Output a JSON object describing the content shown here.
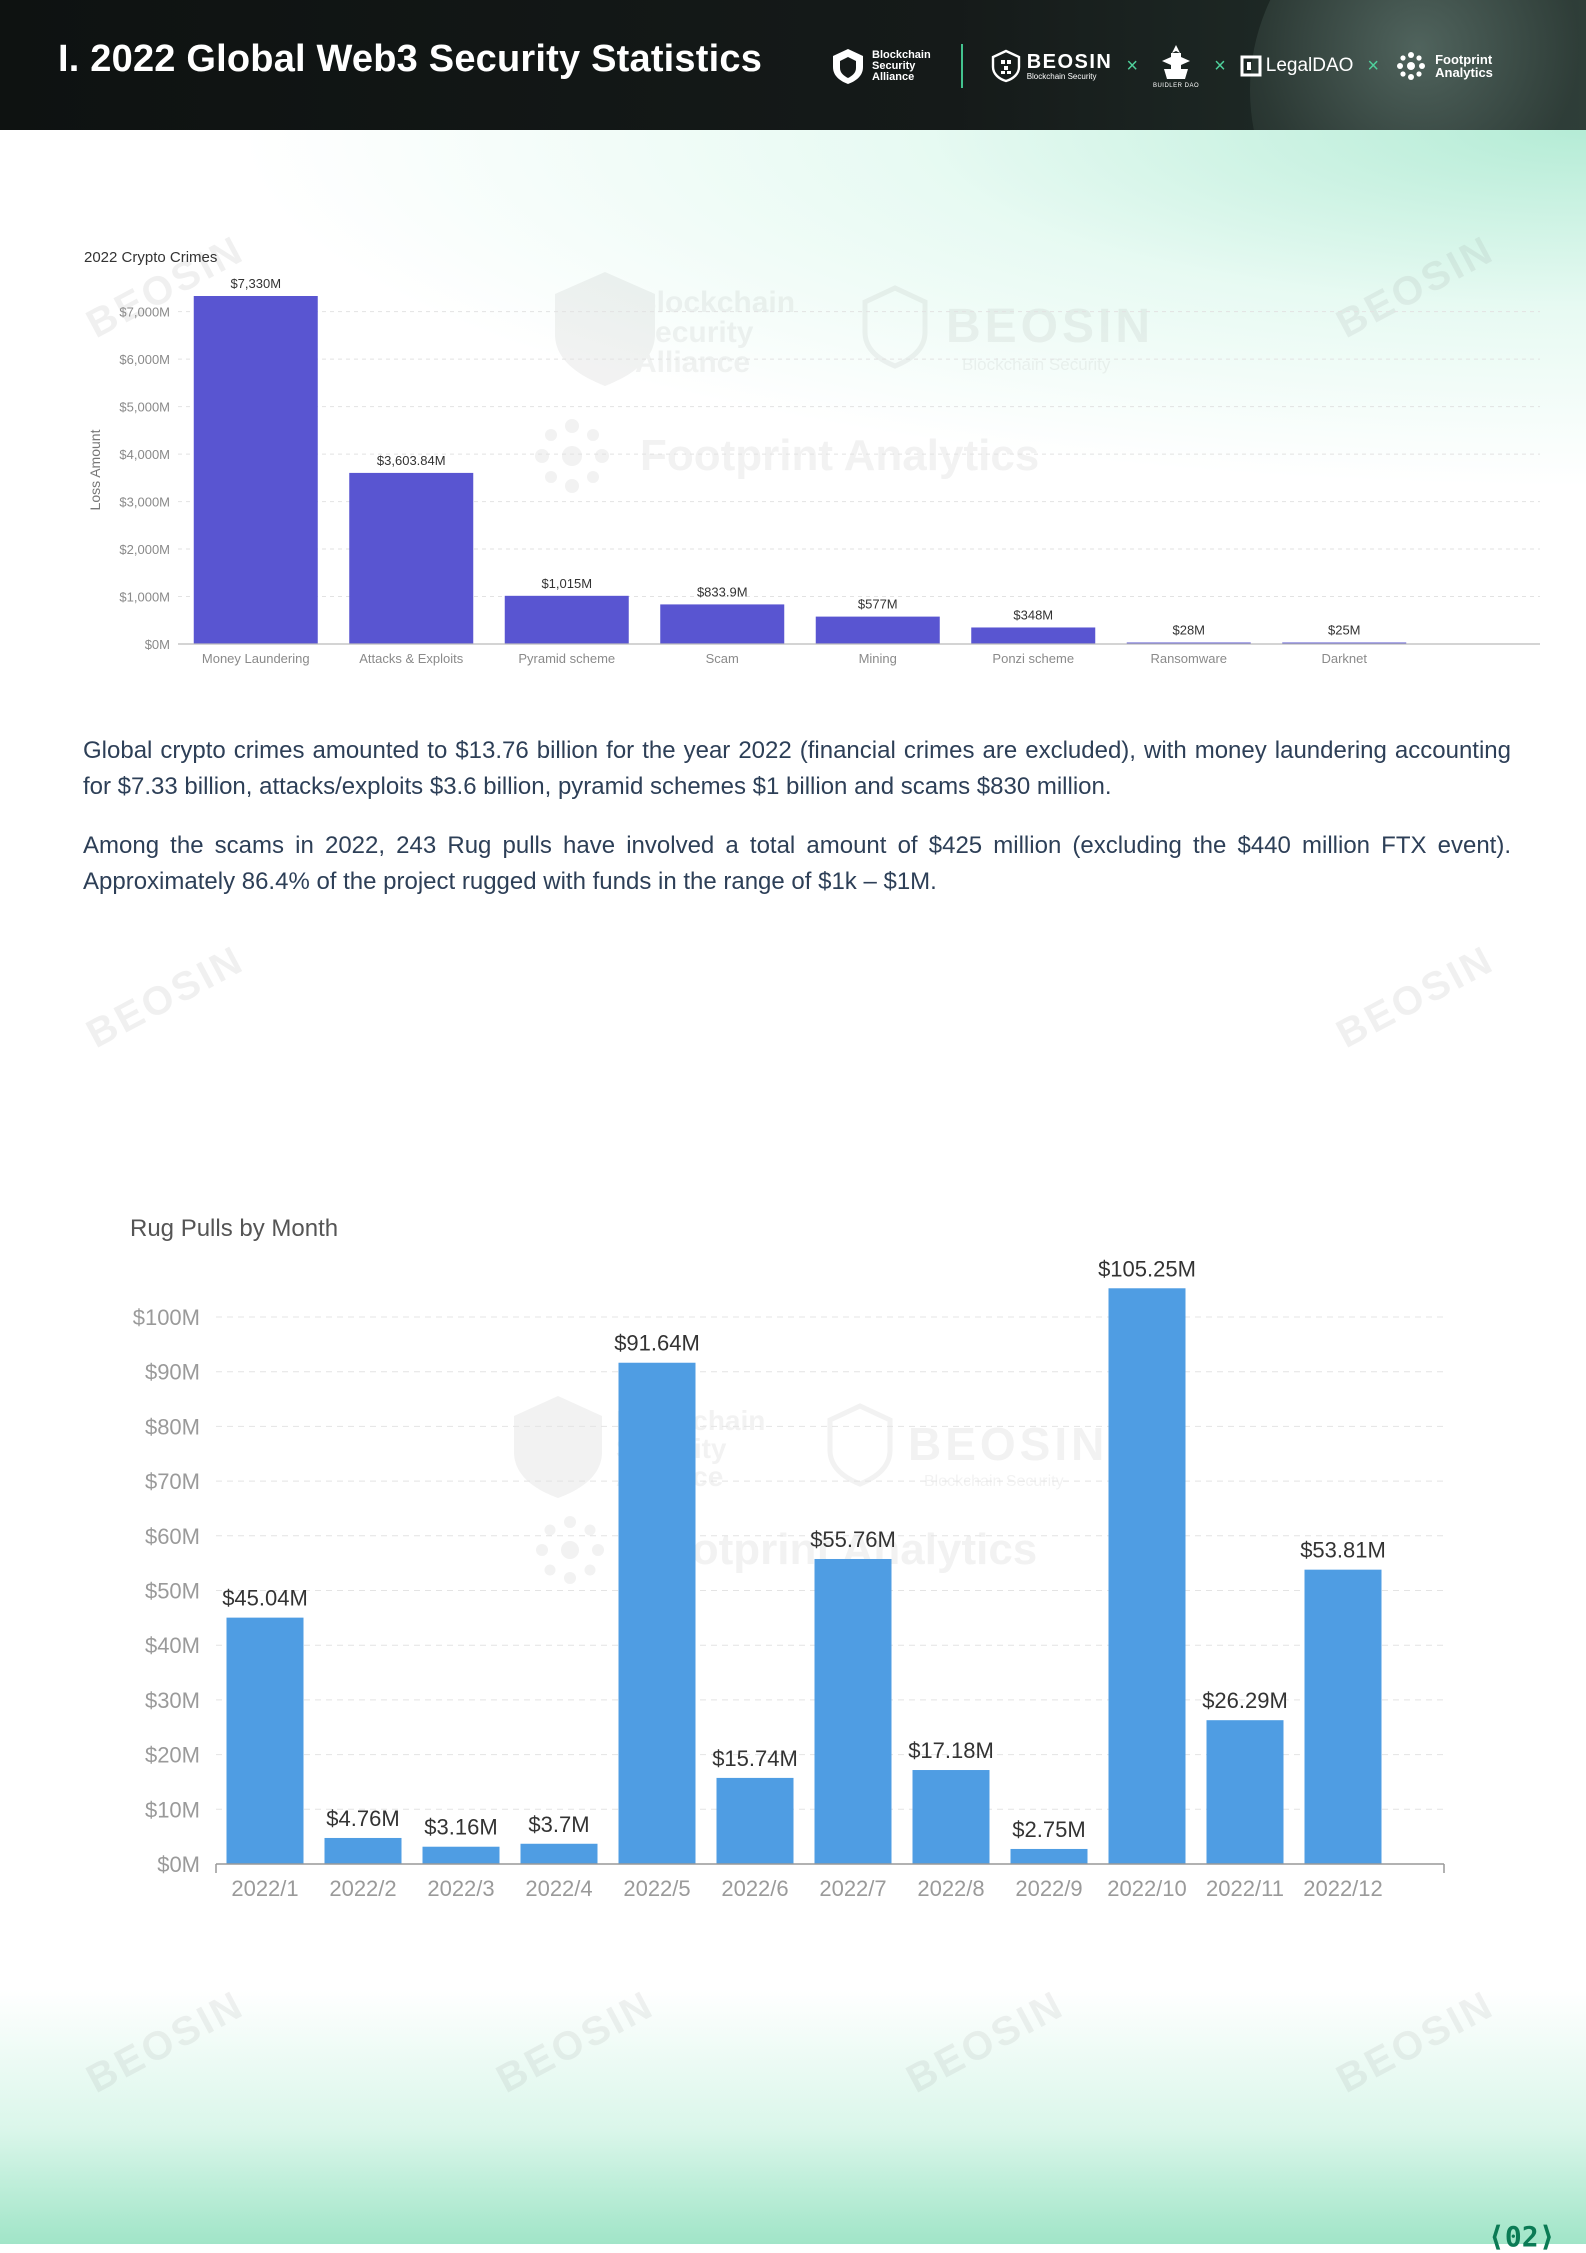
{
  "header": {
    "title": "I. 2022 Global Web3 Security Statistics",
    "logos": {
      "bsa": [
        "Blockchain",
        "Security",
        "Alliance"
      ],
      "beosin": {
        "name": "BEOSIN",
        "sub": "Blockchain Security"
      },
      "buidler": "BUIDLER DAO",
      "legaldao": "LegalDAO",
      "footprint": [
        "Footprint",
        "Analytics"
      ],
      "separator": "×"
    }
  },
  "watermarks": {
    "beosin": "BEOSIN",
    "beosin_sub": "Blockchain Security",
    "bsa": [
      "Blockchain",
      "Security",
      "Alliance"
    ],
    "footprint": "Footprint Analytics"
  },
  "colors": {
    "chart1_bar": "#5955d1",
    "chart2_bar": "#4f9de3",
    "text_body": "#2d3f57",
    "accent_green": "#43c38f"
  },
  "chart_data": [
    {
      "type": "bar",
      "title": "2022 Crypto Crimes",
      "xlabel": "",
      "ylabel": "Loss Amount",
      "categories": [
        "Money Laundering",
        "Attacks & Exploits",
        "Pyramid scheme",
        "Scam",
        "Mining",
        "Ponzi scheme",
        "Ransomware",
        "Darknet"
      ],
      "values": [
        7330,
        3603.84,
        1015,
        833.9,
        577,
        348,
        28,
        25
      ],
      "data_labels": [
        "$7,330M",
        "$3,603.84M",
        "$1,015M",
        "$833.9M",
        "$577M",
        "$348M",
        "$28M",
        "$25M"
      ],
      "yticks": [
        0,
        1000,
        2000,
        3000,
        4000,
        5000,
        6000,
        7000
      ],
      "ytick_labels": [
        "$0M",
        "$1,000M",
        "$2,000M",
        "$3,000M",
        "$4,000M",
        "$5,000M",
        "$6,000M",
        "$7,000M"
      ],
      "ylim": [
        0,
        7330
      ],
      "grid": true,
      "unit": "M USD"
    },
    {
      "type": "bar",
      "title": "Rug Pulls by Month",
      "xlabel": "",
      "ylabel": "",
      "categories": [
        "2022/1",
        "2022/2",
        "2022/3",
        "2022/4",
        "2022/5",
        "2022/6",
        "2022/7",
        "2022/8",
        "2022/9",
        "2022/10",
        "2022/11",
        "2022/12"
      ],
      "values": [
        45.04,
        4.76,
        3.16,
        3.7,
        91.64,
        15.74,
        55.76,
        17.18,
        2.75,
        105.25,
        26.29,
        53.81
      ],
      "data_labels": [
        "$45.04M",
        "$4.76M",
        "$3.16M",
        "$3.7M",
        "$91.64M",
        "$15.74M",
        "$55.76M",
        "$17.18M",
        "$2.75M",
        "$105.25M",
        "$26.29M",
        "$53.81M"
      ],
      "yticks": [
        0,
        10,
        20,
        30,
        40,
        50,
        60,
        70,
        80,
        90,
        100
      ],
      "ytick_labels": [
        "$0M",
        "$10M",
        "$20M",
        "$30M",
        "$40M",
        "$50M",
        "$60M",
        "$70M",
        "$80M",
        "$90M",
        "$100M"
      ],
      "ylim": [
        0,
        105.25
      ],
      "grid": true,
      "unit": "M USD"
    }
  ],
  "body": {
    "para1": "Global crypto crimes amounted to $13.76 billion for the year 2022 (financial crimes are excluded), with money laundering accounting for $7.33 billion, attacks/exploits $3.6 billion, pyramid schemes $1 billion and scams $830 million.",
    "para2": "Among the scams in 2022, 243 Rug pulls have involved a total amount of $425 million (excluding the $440 million FTX event). Approximately 86.4% of the project rugged with funds in the range of $1k – $1M."
  },
  "footer": {
    "page_number": "⟨02⟩"
  }
}
